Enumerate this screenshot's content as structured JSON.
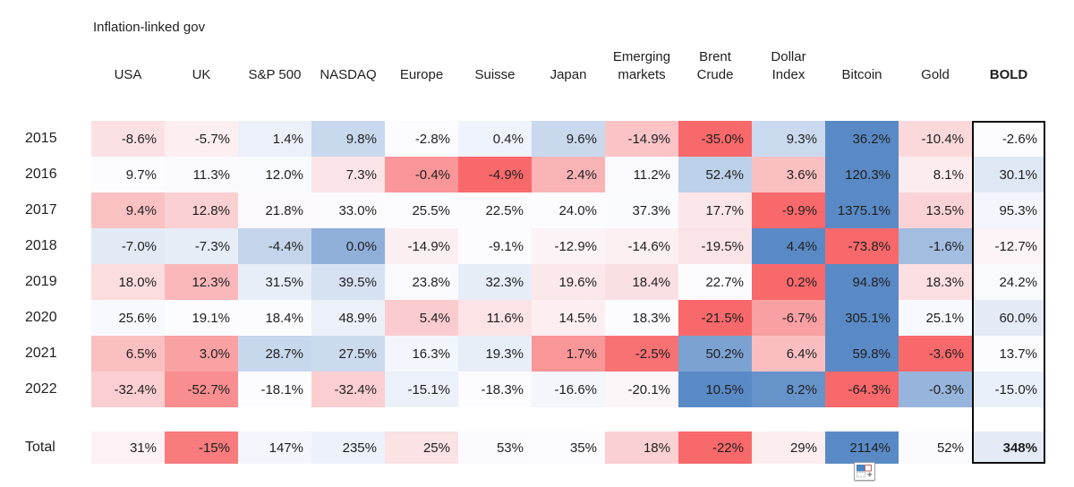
{
  "table": {
    "group_header": "Inflation-linked gov"
  },
  "icons": {
    "paste_options": "paste-options-icon"
  },
  "colors": {
    "background": "#ffffff",
    "text": "#1f1f1f",
    "outline_box": "#0a0a0a",
    "scale_min_red": "#F8696B",
    "scale_mid_white": "#FCFCFF",
    "scale_max_blue": "#5A8AC6"
  },
  "chart_data": {
    "type": "heatmap",
    "title": "",
    "group_header": "Inflation-linked gov",
    "group_header_spans_columns": [
      "USA",
      "UK"
    ],
    "unit": "%",
    "columns": [
      "USA",
      "UK",
      "S&P 500",
      "NASDAQ",
      "Europe",
      "Suisse",
      "Japan",
      "Emerging markets",
      "Brent Crude",
      "Dollar Index",
      "Bitcoin",
      "Gold",
      "BOLD"
    ],
    "rows": [
      {
        "label": "2015",
        "decimals": 1,
        "values": [
          -8.6,
          -5.7,
          1.4,
          9.8,
          -2.8,
          0.4,
          9.6,
          -14.9,
          -35.0,
          9.3,
          36.2,
          -10.4,
          -2.6
        ]
      },
      {
        "label": "2016",
        "decimals": 1,
        "values": [
          9.7,
          11.3,
          12.0,
          7.3,
          -0.4,
          -4.9,
          2.4,
          11.2,
          52.4,
          3.6,
          120.3,
          8.1,
          30.1
        ]
      },
      {
        "label": "2017",
        "decimals": 1,
        "values": [
          9.4,
          12.8,
          21.8,
          33.0,
          25.5,
          22.5,
          24.0,
          37.3,
          17.7,
          -9.9,
          1375.1,
          13.5,
          95.3
        ]
      },
      {
        "label": "2018",
        "decimals": 1,
        "values": [
          -7.0,
          -7.3,
          -4.4,
          0.0,
          -14.9,
          -9.1,
          -12.9,
          -14.6,
          -19.5,
          4.4,
          -73.8,
          -1.6,
          -12.7
        ]
      },
      {
        "label": "2019",
        "decimals": 1,
        "values": [
          18.0,
          12.3,
          31.5,
          39.5,
          23.8,
          32.3,
          19.6,
          18.4,
          22.7,
          0.2,
          94.8,
          18.3,
          24.2
        ]
      },
      {
        "label": "2020",
        "decimals": 1,
        "values": [
          25.6,
          19.1,
          18.4,
          48.9,
          5.4,
          11.6,
          14.5,
          18.3,
          -21.5,
          -6.7,
          305.1,
          25.1,
          60.0
        ]
      },
      {
        "label": "2021",
        "decimals": 1,
        "values": [
          6.5,
          3.0,
          28.7,
          27.5,
          16.3,
          19.3,
          1.7,
          -2.5,
          50.2,
          6.4,
          59.8,
          -3.6,
          13.7
        ]
      },
      {
        "label": "2022",
        "decimals": 1,
        "values": [
          -32.4,
          -52.7,
          -18.1,
          -32.4,
          -15.1,
          -18.3,
          -16.6,
          -20.1,
          10.5,
          8.2,
          -64.3,
          -0.3,
          -15.0
        ]
      },
      {
        "label": "Total",
        "decimals": 0,
        "is_total": true,
        "values": [
          31,
          -15,
          147,
          235,
          25,
          53,
          35,
          18,
          -22,
          29,
          2114,
          52,
          348
        ]
      }
    ],
    "color_scale": {
      "scope": "per-row",
      "min_color": "#F8696B",
      "mid_color": "#FCFCFF",
      "max_color": "#5A8AC6",
      "midpoint": "percentile-50"
    },
    "layout_hints": {
      "bold_column_outlined": "BOLD",
      "total_row_separated": true,
      "grid": false,
      "legend": false
    }
  }
}
